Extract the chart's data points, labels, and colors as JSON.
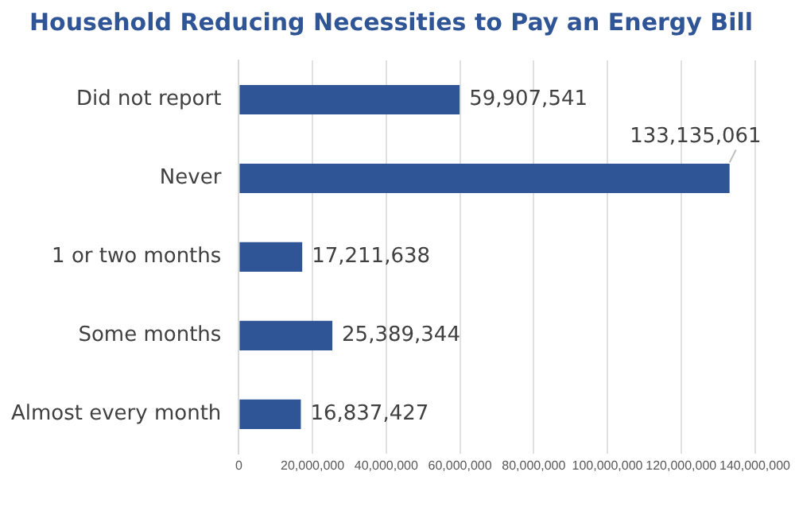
{
  "chart_data": {
    "type": "bar",
    "orientation": "horizontal",
    "title": "Household Reducing Necessities to Pay an Energy Bill",
    "categories": [
      "Did not report",
      "Never",
      "1 or two months",
      "Some months",
      "Almost every month"
    ],
    "values": [
      59907541,
      133135061,
      17211638,
      25389344,
      16837427
    ],
    "color": "#2f5597",
    "xlim": [
      0,
      140000000
    ],
    "xticks": [
      0,
      {
        "value": 20000000,
        "label": "20,000,000"
      },
      {
        "value": 40000000,
        "label": "40,000,000"
      },
      {
        "value": 60000000,
        "label": "60,000,000"
      },
      {
        "value": 80000000,
        "label": "80,000,000"
      },
      {
        "value": 100000000,
        "label": "100,000,000"
      },
      {
        "value": 120000000,
        "label": "120,000,000"
      },
      {
        "value": 140000000,
        "label": "140,000,000"
      }
    ],
    "value_labels": [
      "59,907,541",
      "133,135,061",
      "17,211,638",
      "25,389,344",
      "16,837,427"
    ],
    "grid": "x",
    "legend": false
  }
}
